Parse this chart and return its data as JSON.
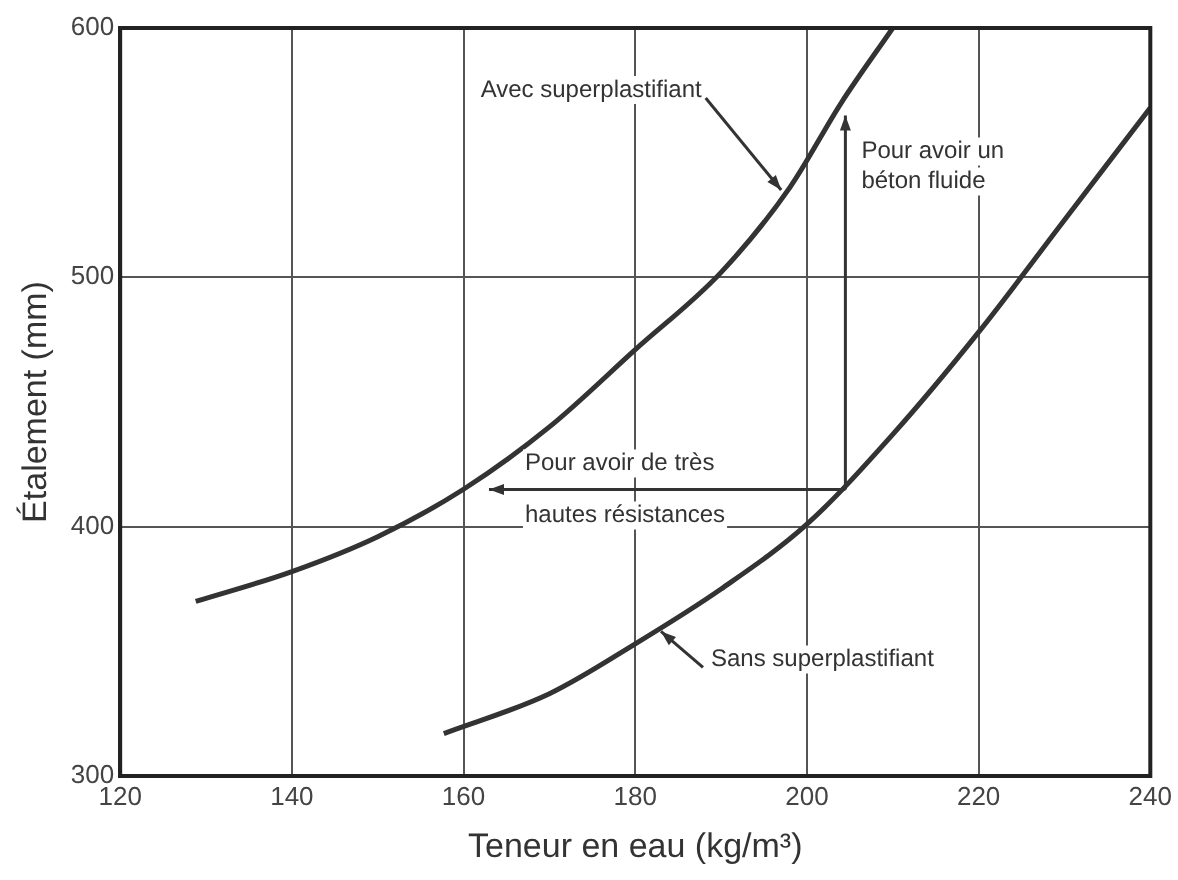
{
  "chart_data": {
    "type": "line",
    "xlabel": "Teneur en eau (kg/m³)",
    "ylabel": "Étalement (mm)",
    "xlim": [
      120,
      240
    ],
    "xticks": [
      120,
      140,
      160,
      180,
      200,
      220,
      240
    ],
    "ylim": [
      300,
      600
    ],
    "yticks": [
      300,
      400,
      500,
      600
    ],
    "grid": true,
    "marker": "none",
    "line_style": "solid",
    "series": [
      {
        "color": "#333333",
        "x": [
          128.8,
          140,
          150,
          160,
          170,
          180,
          190,
          198,
          204,
          210
        ],
        "values": [
          370,
          382,
          396,
          415,
          440,
          471,
          502,
          536,
          570,
          600
        ]
      },
      {
        "color": "#333333",
        "x": [
          157.7,
          170,
          180,
          190,
          200,
          210,
          220,
          230,
          240
        ],
        "values": [
          317,
          333,
          353,
          375,
          401,
          437,
          478,
          523,
          568
        ]
      }
    ],
    "annotations": [
      {
        "text": "Avec superplastifiant",
        "x": 197,
        "y": 535
      },
      "Pour avoir de très hautes résistances",
      "Pour avoir un béton fluide",
      {
        "text": "Sans superplastifiant",
        "x": 183,
        "y": 358
      }
    ]
  }
}
